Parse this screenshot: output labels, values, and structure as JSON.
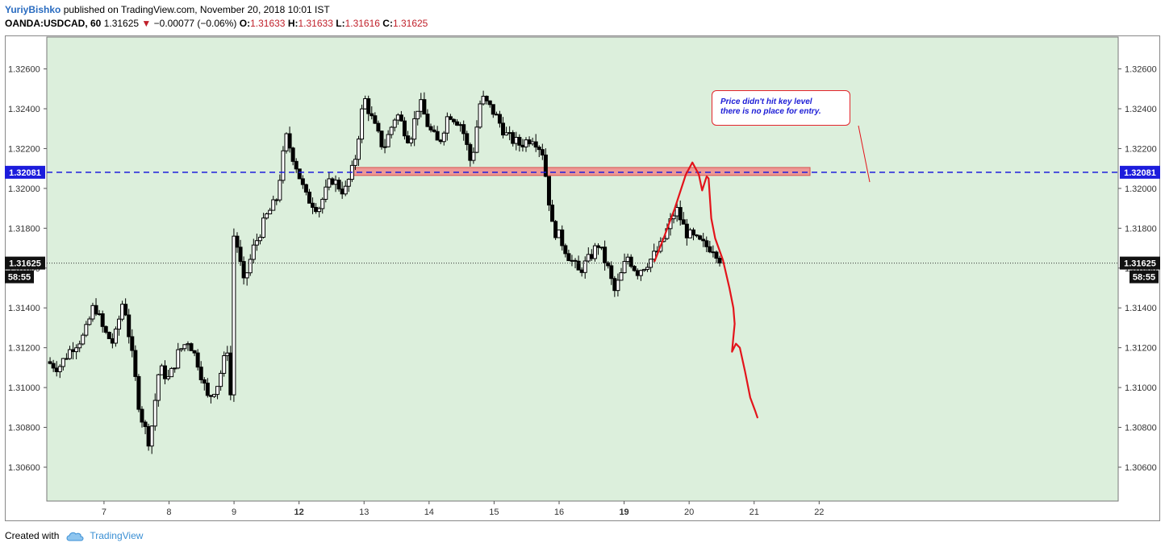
{
  "header": {
    "author": "YuriyBishko",
    "published_text": " published on TradingView.com, November 20, 2018 10:01 IST",
    "symbol": "OANDA:USDCAD, 60",
    "last": "1.31625",
    "change": "−0.00077 (−0.06%)",
    "o_label": "O:",
    "o_value": "1.31633",
    "h_label": "H:",
    "h_value": "1.31633",
    "l_label": "L:",
    "l_value": "1.31616",
    "c_label": "C:",
    "c_value": "1.31625"
  },
  "annotation": {
    "line1": "Price didn't hit key level",
    "line2": "there is no place for entry."
  },
  "price_labels": {
    "key_level": "1.32081",
    "current": "1.31625",
    "countdown": "58:55"
  },
  "footer": {
    "created_with": "Created with",
    "brand": "TradingView"
  },
  "colors": {
    "plot_bg": "#dcefdc",
    "candle": "#000000",
    "key_level_line": "#1c1cdc",
    "zone_fill": "#f08a8a",
    "projection": "#e3141b",
    "author": "#2a6cc0"
  },
  "chart_data": {
    "type": "candlestick",
    "timeframe": "60",
    "ylim": [
      1.3043,
      1.3276
    ],
    "yticks": [
      1.306,
      1.308,
      1.31,
      1.312,
      1.314,
      1.316,
      1.318,
      1.32,
      1.322,
      1.324,
      1.326
    ],
    "ytick_labels": [
      "1.30600",
      "1.30800",
      "1.31000",
      "1.31200",
      "1.31400",
      "1.31600",
      "1.31800",
      "1.32000",
      "1.32200",
      "1.32400",
      "1.32600"
    ],
    "xlim": [
      6.12,
      22.6
    ],
    "xticks": [
      7,
      8,
      9,
      12,
      13,
      14,
      15,
      16,
      19,
      20,
      21,
      22
    ],
    "xtick_labels": [
      "7",
      "8",
      "9",
      "12",
      "13",
      "14",
      "15",
      "16",
      "19",
      "20",
      "21",
      "22"
    ],
    "xtick_bold": [
      false,
      false,
      false,
      true,
      false,
      false,
      false,
      false,
      true,
      false,
      false,
      false
    ],
    "xtick_positions": [
      7,
      8,
      9,
      10,
      11,
      12,
      13,
      14,
      15,
      16,
      17,
      18
    ],
    "key_level": 1.32081,
    "current_price": 1.31625,
    "resistance_zone": {
      "x_start": 10.8,
      "x_end": 17.86,
      "low": 1.32065,
      "high": 1.32105
    },
    "candles_note": "approximate hourly OHLC path from Nov 6 to Nov 20",
    "path": [
      [
        6.12,
        1.3113
      ],
      [
        6.3,
        1.311
      ],
      [
        6.5,
        1.312
      ],
      [
        6.7,
        1.3126
      ],
      [
        6.85,
        1.3142
      ],
      [
        7.0,
        1.3128
      ],
      [
        7.15,
        1.3122
      ],
      [
        7.3,
        1.3145
      ],
      [
        7.45,
        1.3112
      ],
      [
        7.55,
        1.3088
      ],
      [
        7.7,
        1.3072
      ],
      [
        7.85,
        1.311
      ],
      [
        8.0,
        1.3104
      ],
      [
        8.15,
        1.3118
      ],
      [
        8.3,
        1.3124
      ],
      [
        8.45,
        1.3112
      ],
      [
        8.6,
        1.3094
      ],
      [
        8.75,
        1.3102
      ],
      [
        8.9,
        1.312
      ],
      [
        8.95,
        1.3095
      ],
      [
        9.0,
        1.318
      ],
      [
        9.15,
        1.3152
      ],
      [
        9.3,
        1.317
      ],
      [
        9.5,
        1.3186
      ],
      [
        9.65,
        1.3194
      ],
      [
        9.8,
        1.3226
      ],
      [
        9.95,
        1.3212
      ],
      [
        10.1,
        1.3196
      ],
      [
        10.3,
        1.319
      ],
      [
        10.5,
        1.3205
      ],
      [
        10.7,
        1.3198
      ],
      [
        10.85,
        1.3212
      ],
      [
        11.0,
        1.3246
      ],
      [
        11.15,
        1.3232
      ],
      [
        11.3,
        1.322
      ],
      [
        11.5,
        1.3238
      ],
      [
        11.7,
        1.3224
      ],
      [
        11.85,
        1.3244
      ],
      [
        12.0,
        1.323
      ],
      [
        12.15,
        1.3222
      ],
      [
        12.3,
        1.3238
      ],
      [
        12.5,
        1.3232
      ],
      [
        12.65,
        1.3212
      ],
      [
        12.8,
        1.3246
      ],
      [
        13.0,
        1.3238
      ],
      [
        13.2,
        1.3226
      ],
      [
        13.4,
        1.3222
      ],
      [
        13.6,
        1.3226
      ],
      [
        13.75,
        1.3218
      ],
      [
        13.82,
        1.32
      ],
      [
        13.9,
        1.318
      ],
      [
        14.0,
        1.3176
      ],
      [
        14.15,
        1.3166
      ],
      [
        14.3,
        1.3158
      ],
      [
        14.45,
        1.3164
      ],
      [
        14.6,
        1.3172
      ],
      [
        14.75,
        1.316
      ],
      [
        14.85,
        1.3148
      ],
      [
        14.95,
        1.3156
      ],
      [
        15.05,
        1.3166
      ],
      [
        15.2,
        1.3158
      ],
      [
        15.4,
        1.3164
      ],
      [
        15.55,
        1.317
      ],
      [
        15.7,
        1.3182
      ],
      [
        15.8,
        1.319
      ],
      [
        15.95,
        1.3178
      ],
      [
        16.1,
        1.3174
      ],
      [
        16.25,
        1.3171
      ],
      [
        16.4,
        1.317
      ],
      [
        16.47,
        1.31625
      ]
    ],
    "projection": [
      [
        15.47,
        1.31635
      ],
      [
        15.62,
        1.3176
      ],
      [
        15.78,
        1.319
      ],
      [
        15.95,
        1.3207
      ],
      [
        16.05,
        1.3213
      ],
      [
        16.15,
        1.3207
      ],
      [
        16.2,
        1.3199
      ],
      [
        16.27,
        1.3206
      ],
      [
        16.3,
        1.3205
      ],
      [
        16.34,
        1.3185
      ],
      [
        16.4,
        1.3175
      ],
      [
        16.52,
        1.3164
      ],
      [
        16.62,
        1.315
      ],
      [
        16.68,
        1.314
      ],
      [
        16.7,
        1.3132
      ],
      [
        16.66,
        1.3118
      ],
      [
        16.72,
        1.3122
      ],
      [
        16.78,
        1.312
      ],
      [
        16.86,
        1.3108
      ],
      [
        16.94,
        1.3095
      ],
      [
        17.02,
        1.3088
      ],
      [
        17.05,
        1.3085
      ]
    ]
  }
}
